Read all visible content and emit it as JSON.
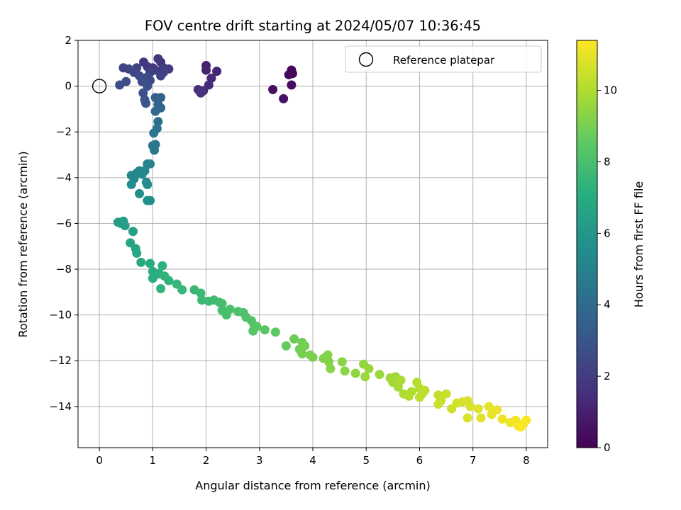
{
  "chart_data": {
    "type": "scatter",
    "title": "FOV centre drift starting at 2024/05/07 10:36:45",
    "xlabel": "Angular distance from reference (arcmin)",
    "ylabel": "Rotation from reference (arcmin)",
    "xlim": [
      -0.4,
      8.4
    ],
    "ylim": [
      -15.8,
      2.0
    ],
    "x_ticks": [
      0,
      1,
      2,
      3,
      4,
      5,
      6,
      7,
      8
    ],
    "y_ticks": [
      2,
      0,
      -2,
      -4,
      -6,
      -8,
      -10,
      -12,
      -14
    ],
    "x_tick_labels": [
      "0",
      "1",
      "2",
      "3",
      "4",
      "5",
      "6",
      "7",
      "8"
    ],
    "y_tick_labels": [
      "2",
      "0",
      "−2",
      "−4",
      "−6",
      "−8",
      "−10",
      "−12",
      "−14"
    ],
    "grid": true,
    "colormap": "viridis",
    "colorbar": {
      "label": "Hours from first FF file",
      "range": [
        0,
        11.4
      ],
      "ticks": [
        0,
        2,
        4,
        6,
        8,
        10
      ],
      "tick_labels": [
        "0",
        "2",
        "4",
        "6",
        "8",
        "10"
      ]
    },
    "legend": {
      "position": "top-right",
      "entries": [
        {
          "label": "Reference platepar",
          "marker": "open-circle"
        }
      ]
    },
    "reference_point": {
      "x": 0,
      "y": 0
    },
    "series": [
      {
        "points": [
          {
            "x": 3.6,
            "y": 0.7,
            "c": 0.1
          },
          {
            "x": 3.62,
            "y": 0.55,
            "c": 0.2
          },
          {
            "x": 3.55,
            "y": 0.5,
            "c": 0.3
          },
          {
            "x": 3.6,
            "y": 0.05,
            "c": 0.4
          },
          {
            "x": 3.25,
            "y": -0.15,
            "c": 0.5
          },
          {
            "x": 3.45,
            "y": -0.55,
            "c": 0.6
          },
          {
            "x": 2.0,
            "y": 0.9,
            "c": 1.0
          },
          {
            "x": 2.0,
            "y": 0.7,
            "c": 1.1
          },
          {
            "x": 2.2,
            "y": 0.65,
            "c": 1.2
          },
          {
            "x": 2.1,
            "y": 0.35,
            "c": 1.3
          },
          {
            "x": 2.05,
            "y": 0.05,
            "c": 1.4
          },
          {
            "x": 1.85,
            "y": -0.15,
            "c": 1.5
          },
          {
            "x": 1.95,
            "y": -0.2,
            "c": 1.55
          },
          {
            "x": 1.9,
            "y": -0.3,
            "c": 1.6
          },
          {
            "x": 1.1,
            "y": 1.2,
            "c": 1.7
          },
          {
            "x": 1.15,
            "y": 1.05,
            "c": 1.75
          },
          {
            "x": 0.83,
            "y": 1.05,
            "c": 1.8
          },
          {
            "x": 0.9,
            "y": 0.85,
            "c": 1.85
          },
          {
            "x": 1.0,
            "y": 0.8,
            "c": 1.9
          },
          {
            "x": 1.05,
            "y": 0.7,
            "c": 1.95
          },
          {
            "x": 1.2,
            "y": 0.8,
            "c": 2.0
          },
          {
            "x": 1.3,
            "y": 0.75,
            "c": 2.05
          },
          {
            "x": 1.2,
            "y": 0.6,
            "c": 2.1
          },
          {
            "x": 1.15,
            "y": 0.45,
            "c": 2.15
          },
          {
            "x": 0.95,
            "y": 0.6,
            "c": 2.2
          },
          {
            "x": 0.7,
            "y": 0.8,
            "c": 2.25
          },
          {
            "x": 0.45,
            "y": 0.8,
            "c": 2.3
          },
          {
            "x": 0.55,
            "y": 0.75,
            "c": 2.35
          },
          {
            "x": 0.65,
            "y": 0.6,
            "c": 2.4
          },
          {
            "x": 0.75,
            "y": 0.45,
            "c": 2.45
          },
          {
            "x": 0.8,
            "y": 0.35,
            "c": 2.5
          },
          {
            "x": 0.9,
            "y": 0.4,
            "c": 2.55
          },
          {
            "x": 0.95,
            "y": 0.25,
            "c": 2.6
          },
          {
            "x": 0.8,
            "y": 0.2,
            "c": 2.65
          },
          {
            "x": 0.5,
            "y": 0.2,
            "c": 2.7
          },
          {
            "x": 0.38,
            "y": 0.05,
            "c": 2.75
          },
          {
            "x": 0.9,
            "y": 0.0,
            "c": 2.8
          },
          {
            "x": 0.82,
            "y": -0.3,
            "c": 2.85
          },
          {
            "x": 0.85,
            "y": -0.6,
            "c": 2.9
          },
          {
            "x": 0.87,
            "y": -0.75,
            "c": 3.0
          },
          {
            "x": 1.05,
            "y": -0.5,
            "c": 3.5
          },
          {
            "x": 1.15,
            "y": -0.5,
            "c": 3.6
          },
          {
            "x": 1.1,
            "y": -0.8,
            "c": 3.7
          },
          {
            "x": 1.15,
            "y": -0.95,
            "c": 3.8
          },
          {
            "x": 1.05,
            "y": -1.1,
            "c": 3.9
          },
          {
            "x": 1.1,
            "y": -1.55,
            "c": 4.2
          },
          {
            "x": 1.08,
            "y": -1.85,
            "c": 4.3
          },
          {
            "x": 1.02,
            "y": -2.05,
            "c": 4.4
          },
          {
            "x": 1.0,
            "y": -2.6,
            "c": 4.5
          },
          {
            "x": 1.05,
            "y": -2.55,
            "c": 4.55
          },
          {
            "x": 1.03,
            "y": -2.8,
            "c": 4.6
          },
          {
            "x": 0.9,
            "y": -3.4,
            "c": 5.0
          },
          {
            "x": 0.95,
            "y": -3.4,
            "c": 5.05
          },
          {
            "x": 0.85,
            "y": -3.7,
            "c": 5.1
          },
          {
            "x": 0.75,
            "y": -3.7,
            "c": 5.15
          },
          {
            "x": 0.7,
            "y": -3.8,
            "c": 5.2
          },
          {
            "x": 0.6,
            "y": -3.9,
            "c": 5.25
          },
          {
            "x": 0.65,
            "y": -4.05,
            "c": 5.3
          },
          {
            "x": 0.8,
            "y": -3.85,
            "c": 5.35
          },
          {
            "x": 0.88,
            "y": -4.2,
            "c": 5.4
          },
          {
            "x": 0.9,
            "y": -4.3,
            "c": 5.45
          },
          {
            "x": 0.6,
            "y": -4.3,
            "c": 5.5
          },
          {
            "x": 0.75,
            "y": -4.7,
            "c": 5.55
          },
          {
            "x": 0.9,
            "y": -5.0,
            "c": 5.6
          },
          {
            "x": 0.95,
            "y": -5.0,
            "c": 5.65
          },
          {
            "x": 0.35,
            "y": -5.95,
            "c": 6.3
          },
          {
            "x": 0.45,
            "y": -5.9,
            "c": 6.35
          },
          {
            "x": 0.4,
            "y": -6.0,
            "c": 6.4
          },
          {
            "x": 0.48,
            "y": -6.1,
            "c": 6.45
          },
          {
            "x": 0.63,
            "y": -6.35,
            "c": 6.5
          },
          {
            "x": 0.58,
            "y": -6.85,
            "c": 6.6
          },
          {
            "x": 0.68,
            "y": -7.1,
            "c": 6.7
          },
          {
            "x": 0.7,
            "y": -7.3,
            "c": 6.8
          },
          {
            "x": 0.78,
            "y": -7.7,
            "c": 6.9
          },
          {
            "x": 0.95,
            "y": -7.75,
            "c": 7.0
          },
          {
            "x": 1.0,
            "y": -8.1,
            "c": 7.05
          },
          {
            "x": 1.05,
            "y": -8.25,
            "c": 7.1
          },
          {
            "x": 1.0,
            "y": -8.4,
            "c": 7.15
          },
          {
            "x": 1.12,
            "y": -8.2,
            "c": 7.2
          },
          {
            "x": 1.18,
            "y": -7.85,
            "c": 7.25
          },
          {
            "x": 1.22,
            "y": -8.3,
            "c": 7.3
          },
          {
            "x": 1.3,
            "y": -8.5,
            "c": 7.35
          },
          {
            "x": 1.15,
            "y": -8.85,
            "c": 7.4
          },
          {
            "x": 1.45,
            "y": -8.65,
            "c": 7.5
          },
          {
            "x": 1.55,
            "y": -8.9,
            "c": 7.55
          },
          {
            "x": 1.78,
            "y": -8.9,
            "c": 7.6
          },
          {
            "x": 1.9,
            "y": -9.05,
            "c": 7.65
          },
          {
            "x": 1.92,
            "y": -9.35,
            "c": 7.7
          },
          {
            "x": 2.05,
            "y": -9.4,
            "c": 7.75
          },
          {
            "x": 2.15,
            "y": -9.35,
            "c": 7.8
          },
          {
            "x": 2.25,
            "y": -9.45,
            "c": 7.85
          },
          {
            "x": 2.3,
            "y": -9.5,
            "c": 7.9
          },
          {
            "x": 2.3,
            "y": -9.8,
            "c": 7.95
          },
          {
            "x": 2.38,
            "y": -10.0,
            "c": 8.0
          },
          {
            "x": 2.45,
            "y": -9.75,
            "c": 8.05
          },
          {
            "x": 2.6,
            "y": -9.85,
            "c": 8.1
          },
          {
            "x": 2.7,
            "y": -9.9,
            "c": 8.15
          },
          {
            "x": 2.75,
            "y": -10.1,
            "c": 8.2
          },
          {
            "x": 2.85,
            "y": -10.25,
            "c": 8.25
          },
          {
            "x": 2.9,
            "y": -10.45,
            "c": 8.3
          },
          {
            "x": 2.88,
            "y": -10.7,
            "c": 8.35
          },
          {
            "x": 2.95,
            "y": -10.5,
            "c": 8.4
          },
          {
            "x": 3.1,
            "y": -10.65,
            "c": 8.45
          },
          {
            "x": 3.3,
            "y": -10.75,
            "c": 8.5
          },
          {
            "x": 3.5,
            "y": -11.35,
            "c": 8.7
          },
          {
            "x": 3.65,
            "y": -11.05,
            "c": 8.8
          },
          {
            "x": 3.75,
            "y": -11.5,
            "c": 8.85
          },
          {
            "x": 3.8,
            "y": -11.2,
            "c": 8.9
          },
          {
            "x": 3.85,
            "y": -11.35,
            "c": 8.95
          },
          {
            "x": 3.8,
            "y": -11.7,
            "c": 9.0
          },
          {
            "x": 3.95,
            "y": -11.75,
            "c": 9.05
          },
          {
            "x": 4.0,
            "y": -11.85,
            "c": 9.1
          },
          {
            "x": 4.2,
            "y": -11.9,
            "c": 9.15
          },
          {
            "x": 4.28,
            "y": -11.75,
            "c": 9.2
          },
          {
            "x": 4.3,
            "y": -12.05,
            "c": 9.25
          },
          {
            "x": 4.33,
            "y": -12.35,
            "c": 9.3
          },
          {
            "x": 4.55,
            "y": -12.05,
            "c": 9.35
          },
          {
            "x": 4.6,
            "y": -12.45,
            "c": 9.4
          },
          {
            "x": 4.8,
            "y": -12.55,
            "c": 9.45
          },
          {
            "x": 4.95,
            "y": -12.15,
            "c": 9.5
          },
          {
            "x": 5.05,
            "y": -12.35,
            "c": 9.55
          },
          {
            "x": 4.98,
            "y": -12.7,
            "c": 9.6
          },
          {
            "x": 5.25,
            "y": -12.6,
            "c": 9.65
          },
          {
            "x": 5.45,
            "y": -12.75,
            "c": 9.7
          },
          {
            "x": 5.55,
            "y": -12.7,
            "c": 9.75
          },
          {
            "x": 5.5,
            "y": -12.95,
            "c": 9.8
          },
          {
            "x": 5.6,
            "y": -13.15,
            "c": 9.85
          },
          {
            "x": 5.65,
            "y": -12.85,
            "c": 9.9
          },
          {
            "x": 5.7,
            "y": -13.45,
            "c": 9.95
          },
          {
            "x": 5.85,
            "y": -13.35,
            "c": 10.0
          },
          {
            "x": 5.8,
            "y": -13.55,
            "c": 10.05
          },
          {
            "x": 5.95,
            "y": -12.95,
            "c": 10.1
          },
          {
            "x": 6.0,
            "y": -13.2,
            "c": 10.15
          },
          {
            "x": 6.05,
            "y": -13.45,
            "c": 10.2
          },
          {
            "x": 6.1,
            "y": -13.3,
            "c": 10.25
          },
          {
            "x": 6.0,
            "y": -13.6,
            "c": 10.3
          },
          {
            "x": 6.35,
            "y": -13.5,
            "c": 10.35
          },
          {
            "x": 6.4,
            "y": -13.75,
            "c": 10.4
          },
          {
            "x": 6.5,
            "y": -13.45,
            "c": 10.45
          },
          {
            "x": 6.35,
            "y": -13.9,
            "c": 10.5
          },
          {
            "x": 6.6,
            "y": -14.1,
            "c": 10.55
          },
          {
            "x": 6.7,
            "y": -13.85,
            "c": 10.6
          },
          {
            "x": 6.8,
            "y": -13.8,
            "c": 10.65
          },
          {
            "x": 6.9,
            "y": -13.75,
            "c": 10.7
          },
          {
            "x": 6.95,
            "y": -14.0,
            "c": 10.75
          },
          {
            "x": 6.9,
            "y": -14.5,
            "c": 10.8
          },
          {
            "x": 7.1,
            "y": -14.1,
            "c": 10.85
          },
          {
            "x": 7.15,
            "y": -14.5,
            "c": 10.9
          },
          {
            "x": 7.3,
            "y": -14.0,
            "c": 10.95
          },
          {
            "x": 7.35,
            "y": -14.35,
            "c": 11.0
          },
          {
            "x": 7.45,
            "y": -14.15,
            "c": 11.05
          },
          {
            "x": 7.55,
            "y": -14.55,
            "c": 11.1
          },
          {
            "x": 7.7,
            "y": -14.7,
            "c": 11.15
          },
          {
            "x": 7.8,
            "y": -14.6,
            "c": 11.2
          },
          {
            "x": 7.85,
            "y": -14.85,
            "c": 11.25
          },
          {
            "x": 7.95,
            "y": -14.75,
            "c": 11.3
          },
          {
            "x": 8.0,
            "y": -14.6,
            "c": 11.35
          },
          {
            "x": 7.9,
            "y": -14.9,
            "c": 11.4
          }
        ]
      }
    ]
  }
}
